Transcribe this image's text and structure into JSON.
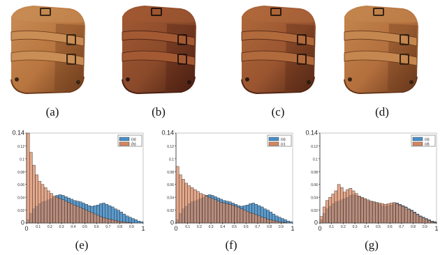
{
  "figure": {
    "photo_captions": [
      "(a)",
      "(b)",
      "(c)",
      "(d)"
    ],
    "histogram_captions": [
      "(e)",
      "(f)",
      "(g)"
    ],
    "photo_palettes": [
      {
        "base": "#b8753f",
        "dark": "#6e3c1c",
        "strap": "#c98e55",
        "buckle": "#3a2615"
      },
      {
        "base": "#8a4a2a",
        "dark": "#4a1e12",
        "strap": "#a35a33",
        "buckle": "#2a1510"
      },
      {
        "base": "#9a5530",
        "dark": "#532614",
        "strap": "#b06a3c",
        "buckle": "#2d1a0f"
      },
      {
        "base": "#b36f3d",
        "dark": "#66361a",
        "strap": "#c4874f",
        "buckle": "#362313"
      }
    ]
  },
  "chart_data": [
    {
      "type": "bar",
      "title": "",
      "xlim": [
        0,
        1
      ],
      "ylim": [
        0,
        0.14
      ],
      "x_ticks": [
        "0",
        "0.1",
        "0.2",
        "0.3",
        "0.4",
        "0.5",
        "0.6",
        "0.7",
        "0.8",
        "0.9",
        "1"
      ],
      "y_ticks": [
        "0",
        "0.02",
        "0.04",
        "0.06",
        "0.08",
        "0.1",
        "0.12",
        "0.14"
      ],
      "legend_position": "top-right",
      "series": [
        {
          "name": "(a)",
          "color": "#4a90c8",
          "values": [
            0.005,
            0.015,
            0.022,
            0.026,
            0.03,
            0.033,
            0.034,
            0.036,
            0.038,
            0.04,
            0.043,
            0.044,
            0.043,
            0.041,
            0.039,
            0.037,
            0.035,
            0.034,
            0.033,
            0.031,
            0.029,
            0.027,
            0.026,
            0.027,
            0.028,
            0.03,
            0.031,
            0.029,
            0.027,
            0.025,
            0.022,
            0.02,
            0.017,
            0.014,
            0.011,
            0.009,
            0.007,
            0.005,
            0.003,
            0.002
          ]
        },
        {
          "name": "(b)",
          "color": "#d9865e",
          "values": [
            0.14,
            0.11,
            0.09,
            0.075,
            0.065,
            0.06,
            0.055,
            0.05,
            0.046,
            0.042,
            0.04,
            0.038,
            0.036,
            0.034,
            0.032,
            0.03,
            0.028,
            0.026,
            0.024,
            0.022,
            0.02,
            0.018,
            0.016,
            0.014,
            0.012,
            0.01,
            0.008,
            0.007,
            0.006,
            0.005,
            0.004,
            0.003,
            0.002,
            0.002,
            0.001,
            0.001,
            0.0,
            0.0,
            0.0,
            0.0
          ]
        }
      ]
    },
    {
      "type": "bar",
      "title": "",
      "xlim": [
        0,
        1
      ],
      "ylim": [
        0,
        0.14
      ],
      "x_ticks": [
        "0",
        "0.1",
        "0.2",
        "0.3",
        "0.4",
        "0.5",
        "0.6",
        "0.7",
        "0.8",
        "0.9",
        "1"
      ],
      "y_ticks": [
        "0",
        "0.02",
        "0.04",
        "0.06",
        "0.08",
        "0.1",
        "0.12",
        "0.14"
      ],
      "legend_position": "top-right",
      "series": [
        {
          "name": "(a)",
          "color": "#4a90c8",
          "values": [
            0.005,
            0.015,
            0.022,
            0.026,
            0.03,
            0.033,
            0.034,
            0.036,
            0.038,
            0.04,
            0.043,
            0.044,
            0.043,
            0.041,
            0.039,
            0.037,
            0.035,
            0.034,
            0.033,
            0.031,
            0.029,
            0.027,
            0.026,
            0.027,
            0.028,
            0.03,
            0.031,
            0.029,
            0.027,
            0.025,
            0.022,
            0.02,
            0.017,
            0.014,
            0.011,
            0.009,
            0.007,
            0.005,
            0.003,
            0.002
          ]
        },
        {
          "name": "(c)",
          "color": "#d9865e",
          "values": [
            0.088,
            0.075,
            0.068,
            0.062,
            0.058,
            0.055,
            0.052,
            0.049,
            0.046,
            0.044,
            0.042,
            0.04,
            0.038,
            0.036,
            0.034,
            0.032,
            0.031,
            0.03,
            0.029,
            0.028,
            0.026,
            0.024,
            0.022,
            0.02,
            0.018,
            0.016,
            0.015,
            0.013,
            0.011,
            0.009,
            0.008,
            0.006,
            0.005,
            0.004,
            0.003,
            0.002,
            0.001,
            0.001,
            0.0,
            0.0
          ]
        }
      ]
    },
    {
      "type": "bar",
      "title": "",
      "xlim": [
        0,
        1
      ],
      "ylim": [
        0,
        0.14
      ],
      "x_ticks": [
        "0",
        "0.1",
        "0.2",
        "0.3",
        "0.4",
        "0.5",
        "0.6",
        "0.7",
        "0.8",
        "0.9",
        "1"
      ],
      "y_ticks": [
        "0",
        "0.02",
        "0.04",
        "0.06",
        "0.08",
        "0.1",
        "0.12",
        "0.14"
      ],
      "legend_position": "top-right",
      "series": [
        {
          "name": "(a)",
          "color": "#4a90c8",
          "values": [
            0.005,
            0.015,
            0.022,
            0.026,
            0.03,
            0.033,
            0.034,
            0.036,
            0.038,
            0.04,
            0.043,
            0.044,
            0.043,
            0.041,
            0.039,
            0.037,
            0.035,
            0.034,
            0.033,
            0.031,
            0.029,
            0.027,
            0.026,
            0.027,
            0.028,
            0.03,
            0.031,
            0.029,
            0.027,
            0.025,
            0.022,
            0.02,
            0.017,
            0.014,
            0.011,
            0.009,
            0.007,
            0.005,
            0.003,
            0.002
          ]
        },
        {
          "name": "(d)",
          "color": "#d9865e",
          "values": [
            0.01,
            0.025,
            0.035,
            0.04,
            0.045,
            0.05,
            0.06,
            0.055,
            0.048,
            0.052,
            0.054,
            0.05,
            0.046,
            0.042,
            0.04,
            0.038,
            0.036,
            0.034,
            0.033,
            0.032,
            0.031,
            0.03,
            0.029,
            0.03,
            0.031,
            0.032,
            0.03,
            0.028,
            0.026,
            0.024,
            0.021,
            0.019,
            0.016,
            0.013,
            0.01,
            0.008,
            0.006,
            0.004,
            0.002,
            0.001
          ]
        }
      ]
    }
  ]
}
